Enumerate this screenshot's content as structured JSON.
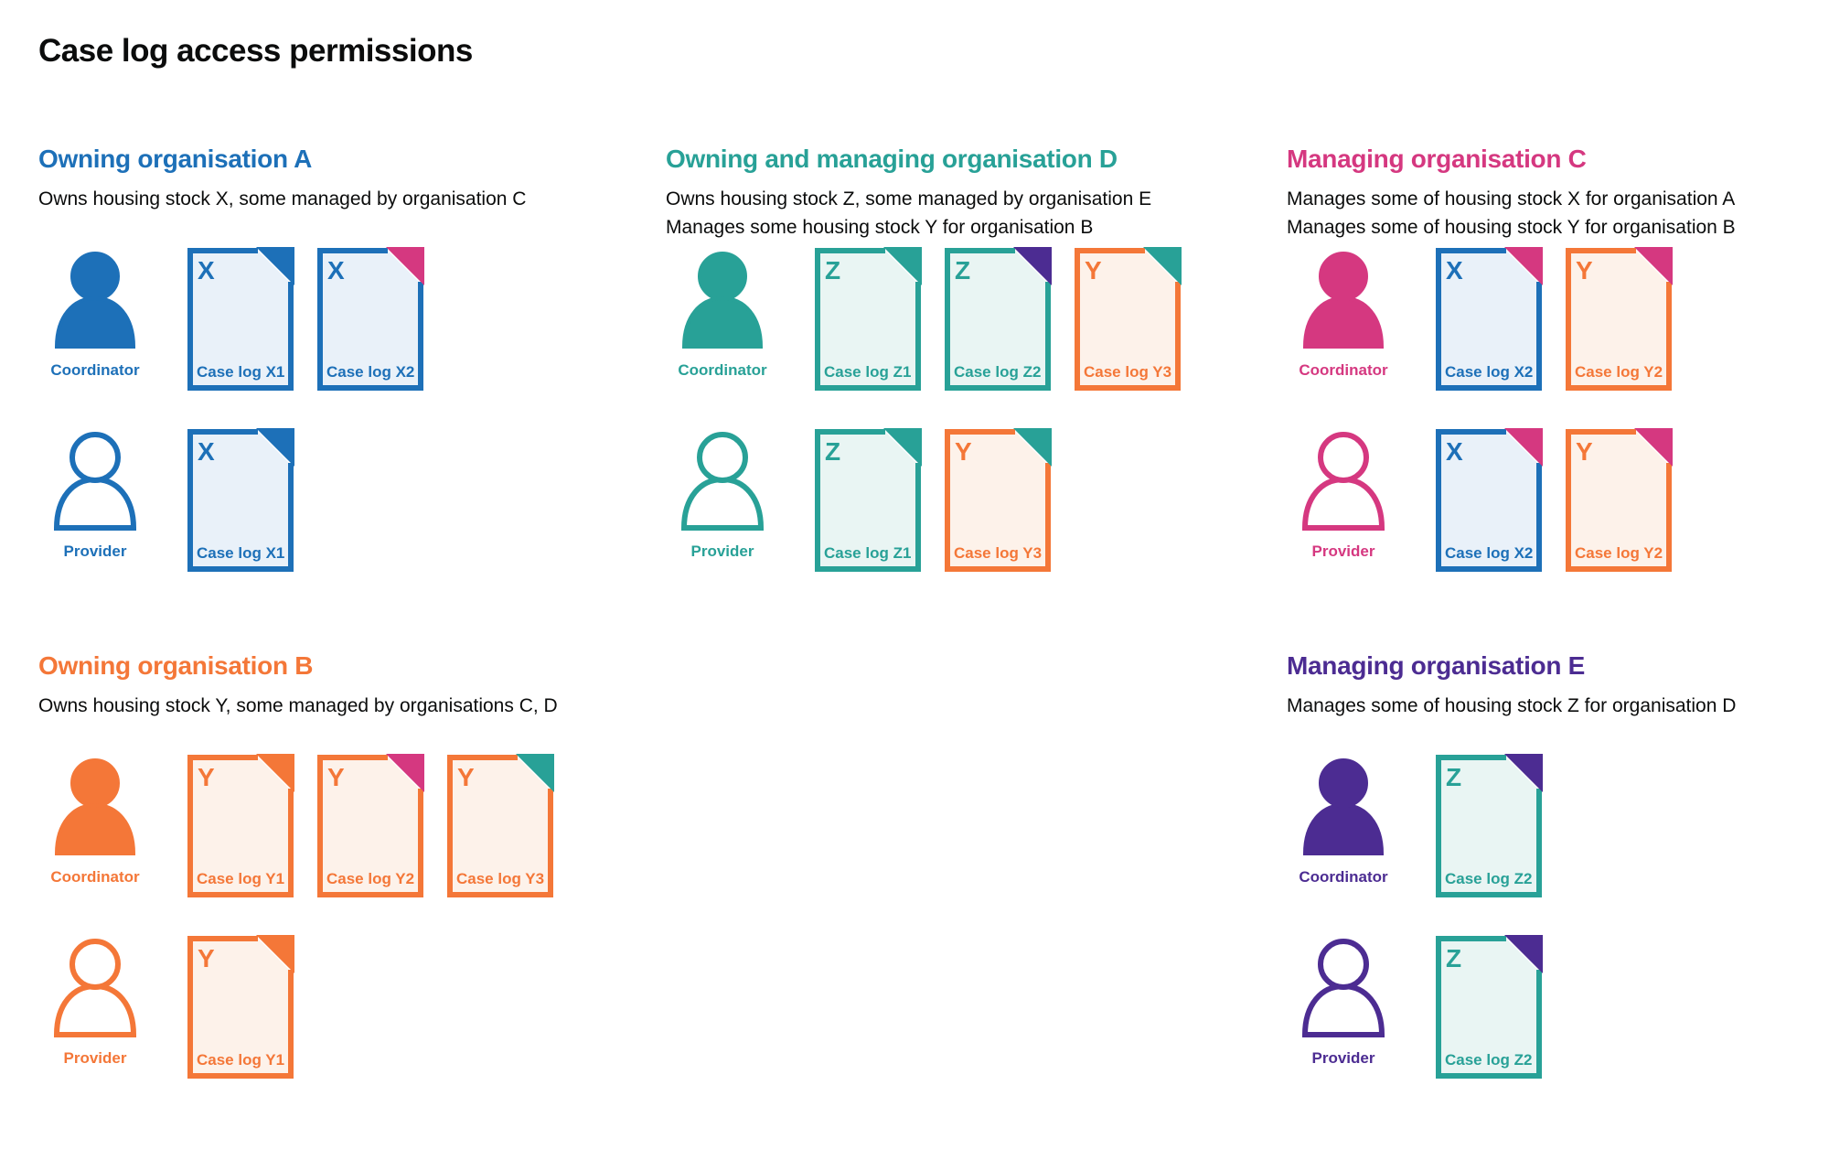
{
  "title": "Case log access permissions",
  "colors": {
    "blue": "#1d70b8",
    "teal": "#28a197",
    "pink": "#d53880",
    "orange": "#f47738",
    "purple": "#4c2c92",
    "blue_tint": "#e9f1f9",
    "teal_tint": "#e9f5f3",
    "orange_tint": "#fdf2ea",
    "text": "#0b0c0c",
    "background": "#ffffff"
  },
  "sections": [
    {
      "id": "owning-organisation-a",
      "color": "blue",
      "title": "Owning organisation A",
      "subtitle": [
        "Owns housing stock X, some managed by organisation C"
      ],
      "rows": [
        {
          "role": "Coordinator",
          "filled": true,
          "docs": [
            {
              "letter": "X",
              "label": "Case log X1",
              "color": "blue",
              "fold": "blue"
            },
            {
              "letter": "X",
              "label": "Case log X2",
              "color": "blue",
              "fold": "pink"
            }
          ]
        },
        {
          "role": "Provider",
          "filled": false,
          "docs": [
            {
              "letter": "X",
              "label": "Case log X1",
              "color": "blue",
              "fold": "blue"
            }
          ]
        }
      ]
    },
    {
      "id": "owning-and-managing-organisation-d",
      "color": "teal",
      "title": "Owning and managing organisation D",
      "subtitle": [
        "Owns housing stock Z, some managed by organisation E",
        "Manages some housing stock Y for organisation B"
      ],
      "rows": [
        {
          "role": "Coordinator",
          "filled": true,
          "docs": [
            {
              "letter": "Z",
              "label": "Case log Z1",
              "color": "teal",
              "fold": "teal"
            },
            {
              "letter": "Z",
              "label": "Case log Z2",
              "color": "teal",
              "fold": "purple"
            },
            {
              "letter": "Y",
              "label": "Case log Y3",
              "color": "orange",
              "fold": "teal"
            }
          ]
        },
        {
          "role": "Provider",
          "filled": false,
          "docs": [
            {
              "letter": "Z",
              "label": "Case log Z1",
              "color": "teal",
              "fold": "teal"
            },
            {
              "letter": "Y",
              "label": "Case log Y3",
              "color": "orange",
              "fold": "teal"
            }
          ]
        }
      ]
    },
    {
      "id": "managing-organisation-c",
      "color": "pink",
      "title": "Managing organisation C",
      "subtitle": [
        "Manages some of housing stock X for organisation A",
        "Manages some of housing stock Y for organisation B"
      ],
      "rows": [
        {
          "role": "Coordinator",
          "filled": true,
          "docs": [
            {
              "letter": "X",
              "label": "Case log X2",
              "color": "blue",
              "fold": "pink"
            },
            {
              "letter": "Y",
              "label": "Case log Y2",
              "color": "orange",
              "fold": "pink"
            }
          ]
        },
        {
          "role": "Provider",
          "filled": false,
          "docs": [
            {
              "letter": "X",
              "label": "Case log X2",
              "color": "blue",
              "fold": "pink"
            },
            {
              "letter": "Y",
              "label": "Case log Y2",
              "color": "orange",
              "fold": "pink"
            }
          ]
        }
      ]
    },
    {
      "id": "owning-organisation-b",
      "color": "orange",
      "title": "Owning organisation B",
      "subtitle": [
        "Owns housing stock Y, some managed by organisations C, D"
      ],
      "rows": [
        {
          "role": "Coordinator",
          "filled": true,
          "docs": [
            {
              "letter": "Y",
              "label": "Case log Y1",
              "color": "orange",
              "fold": "orange"
            },
            {
              "letter": "Y",
              "label": "Case log Y2",
              "color": "orange",
              "fold": "pink"
            },
            {
              "letter": "Y",
              "label": "Case log Y3",
              "color": "orange",
              "fold": "teal"
            }
          ]
        },
        {
          "role": "Provider",
          "filled": false,
          "docs": [
            {
              "letter": "Y",
              "label": "Case log Y1",
              "color": "orange",
              "fold": "orange"
            }
          ]
        }
      ]
    },
    {
      "id": "managing-organisation-e",
      "color": "purple",
      "title": "Managing organisation E",
      "subtitle": [
        "Manages some of housing stock Z for organisation D"
      ],
      "rows": [
        {
          "role": "Coordinator",
          "filled": true,
          "docs": [
            {
              "letter": "Z",
              "label": "Case log Z2",
              "color": "teal",
              "fold": "purple"
            }
          ]
        },
        {
          "role": "Provider",
          "filled": false,
          "docs": [
            {
              "letter": "Z",
              "label": "Case log Z2",
              "color": "teal",
              "fold": "purple"
            }
          ]
        }
      ]
    }
  ]
}
